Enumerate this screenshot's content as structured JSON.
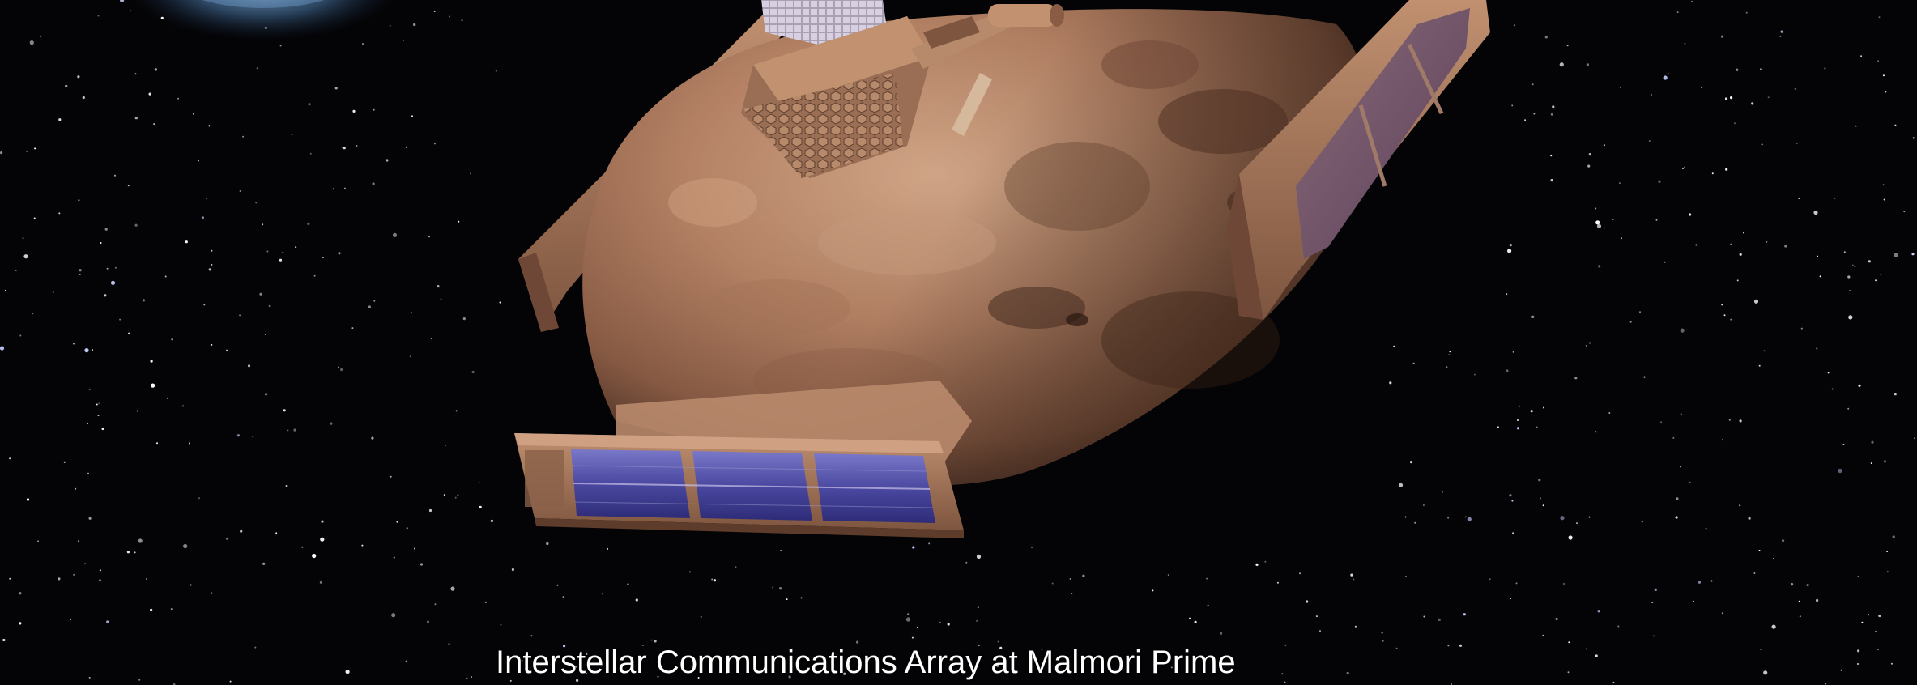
{
  "caption": "Interstellar Communications Array at Malmori Prime",
  "colors": {
    "space": "#040406",
    "asteroid": "#b78a6e",
    "asteroid_shadow": "#5a3a2c",
    "frame": "#a4765a",
    "solar_cell": "#4a4aa0",
    "planet_glow": "#5a8ab8"
  },
  "icons": [
    "starfield",
    "asteroid",
    "solar-panel-array",
    "communications-antenna",
    "distant-planet"
  ]
}
